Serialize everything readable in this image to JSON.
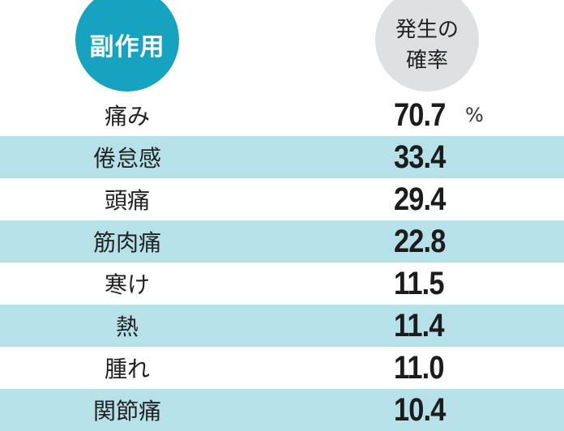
{
  "header": {
    "side_effect_label": "副作用",
    "rate_label_line1": "発生の",
    "rate_label_line2": "確率"
  },
  "colors": {
    "side_effect_badge": "#16a3c0",
    "rate_badge": "#dfe0e2",
    "stripe": "#b6e1e9",
    "text": "#222222"
  },
  "unit": "%",
  "rows": [
    {
      "name": "痛み",
      "value": "70.7"
    },
    {
      "name": "倦怠感",
      "value": "33.4"
    },
    {
      "name": "頭痛",
      "value": "29.4"
    },
    {
      "name": "筋肉痛",
      "value": "22.8"
    },
    {
      "name": "寒け",
      "value": "11.5"
    },
    {
      "name": "熱",
      "value": "11.4"
    },
    {
      "name": "腫れ",
      "value": "11.0"
    },
    {
      "name": "関節痛",
      "value": "10.4"
    }
  ]
}
